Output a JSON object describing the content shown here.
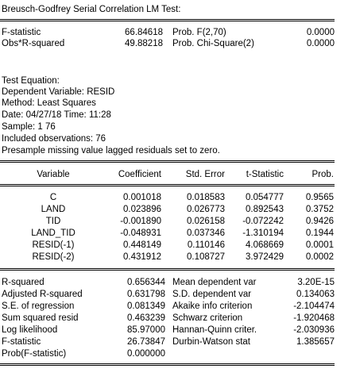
{
  "title": "Breusch-Godfrey Serial Correlation LM Test:",
  "test_stats": [
    {
      "label": "F-statistic",
      "value": "66.84618",
      "prob_label": "Prob. F(2,70)",
      "prob_value": "0.0000"
    },
    {
      "label": "Obs*R-squared",
      "value": "49.88218",
      "prob_label": "Prob. Chi-Square(2)",
      "prob_value": "0.0000"
    }
  ],
  "info_lines": [
    "Test Equation:",
    "Dependent Variable: RESID",
    "Method: Least Squares",
    "Date: 04/27/18   Time: 11:28",
    "Sample: 1 76",
    "Included observations: 76",
    "Presample missing value lagged residuals set to zero."
  ],
  "table": {
    "headers": [
      "Variable",
      "Coefficient",
      "Std. Error",
      "t-Statistic",
      "Prob."
    ],
    "rows": [
      {
        "var": "C",
        "coef": "0.001018",
        "se": "0.018583",
        "t": "0.054777",
        "p": "0.9565"
      },
      {
        "var": "LAND",
        "coef": "0.023896",
        "se": "0.026773",
        "t": "0.892543",
        "p": "0.3752"
      },
      {
        "var": "TID",
        "coef": "-0.001890",
        "se": "0.026158",
        "t": "-0.072242",
        "p": "0.9426"
      },
      {
        "var": "LAND_TID",
        "coef": "-0.048931",
        "se": "0.037346",
        "t": "-1.310194",
        "p": "0.1944"
      },
      {
        "var": "RESID(-1)",
        "coef": "0.448149",
        "se": "0.110146",
        "t": "4.068669",
        "p": "0.0001"
      },
      {
        "var": "RESID(-2)",
        "coef": "0.431912",
        "se": "0.108727",
        "t": "3.972429",
        "p": "0.0002"
      }
    ]
  },
  "summary": [
    {
      "l_label": "R-squared",
      "l_value": "0.656344",
      "r_label": "Mean dependent var",
      "r_value": "3.20E-15"
    },
    {
      "l_label": "Adjusted R-squared",
      "l_value": "0.631798",
      "r_label": "S.D. dependent var",
      "r_value": "0.134063"
    },
    {
      "l_label": "S.E. of regression",
      "l_value": "0.081349",
      "r_label": "Akaike info criterion",
      "r_value": "-2.104474"
    },
    {
      "l_label": "Sum squared resid",
      "l_value": "0.463239",
      "r_label": "Schwarz criterion",
      "r_value": "-1.920468"
    },
    {
      "l_label": "Log likelihood",
      "l_value": "85.97000",
      "r_label": "Hannan-Quinn criter.",
      "r_value": "-2.030936"
    },
    {
      "l_label": "F-statistic",
      "l_value": "26.73847",
      "r_label": "Durbin-Watson stat",
      "r_value": "1.385657"
    },
    {
      "l_label": "Prob(F-statistic)",
      "l_value": "0.000000",
      "r_label": "",
      "r_value": ""
    }
  ]
}
